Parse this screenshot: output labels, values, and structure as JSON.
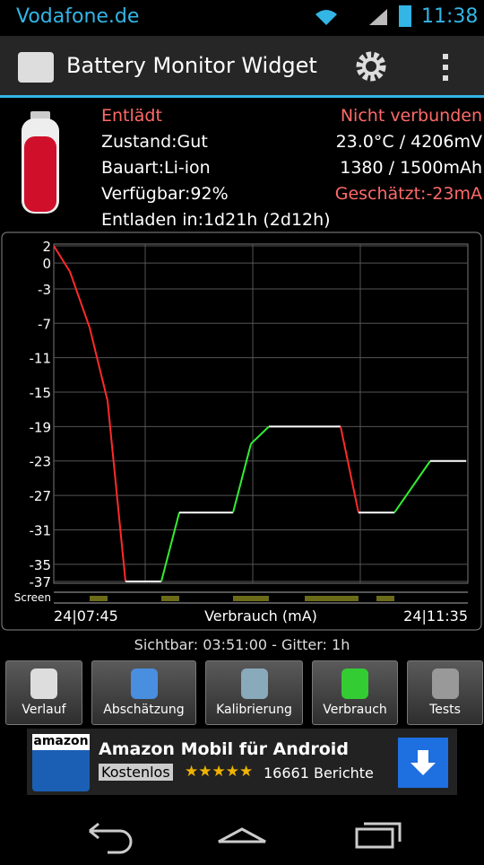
{
  "status_bar": {
    "carrier": "Vodafone.de",
    "time": "11:38"
  },
  "app_bar": {
    "title": "Battery Monitor Widget"
  },
  "battery": {
    "status": "Entlädt",
    "connection": "Nicht verbunden",
    "state": "Zustand:Gut",
    "temp_voltage": "23.0°C / 4206mV",
    "type": "Bauart:Li-ion",
    "capacity": "1380 / 1500mAh",
    "available": "Verfügbar:92%",
    "estimated": "Geschätzt:-23mA",
    "discharge": "Entladen in:1d21h (2d12h)"
  },
  "graph": {
    "type": "line",
    "ylim": [
      -37,
      2
    ],
    "yticks": [
      2,
      0,
      -3,
      -7,
      -11,
      -15,
      -19,
      -23,
      -27,
      -31,
      -35,
      -37
    ],
    "xlim": [
      0,
      231
    ],
    "xgrid": [
      51,
      111,
      171
    ],
    "x": [
      0,
      9,
      20,
      30,
      40,
      60,
      70,
      100,
      110,
      120,
      160,
      170,
      190,
      210,
      230
    ],
    "values": [
      2,
      -1,
      -7.5,
      -16,
      -37,
      -37,
      -29,
      -29,
      -21,
      -19,
      -19,
      -29,
      -29,
      -23,
      -23
    ],
    "colors": {
      "down": "#ff2a2a",
      "up": "#33ee33",
      "flat": "#ffffff",
      "screen": "#6b6b1a"
    },
    "screen_label": "Screen",
    "screen_on": [
      [
        20,
        30
      ],
      [
        60,
        70
      ],
      [
        100,
        120
      ],
      [
        140,
        170
      ],
      [
        180,
        190
      ]
    ],
    "x_start_label": "24|07:45",
    "x_axis_label": "Verbrauch (mA)",
    "x_end_label": "24|11:35"
  },
  "footer_info": "Sichtbar: 03:51:00 - Gitter: 1h",
  "buttons": [
    "Verlauf",
    "Abschätzung",
    "Kalibrierung",
    "Verbrauch",
    "Tests"
  ],
  "ad": {
    "logo": "amazon",
    "title": "Amazon Mobil für Android",
    "badge": "Kostenlos",
    "reviews": "16661 Berichte"
  }
}
